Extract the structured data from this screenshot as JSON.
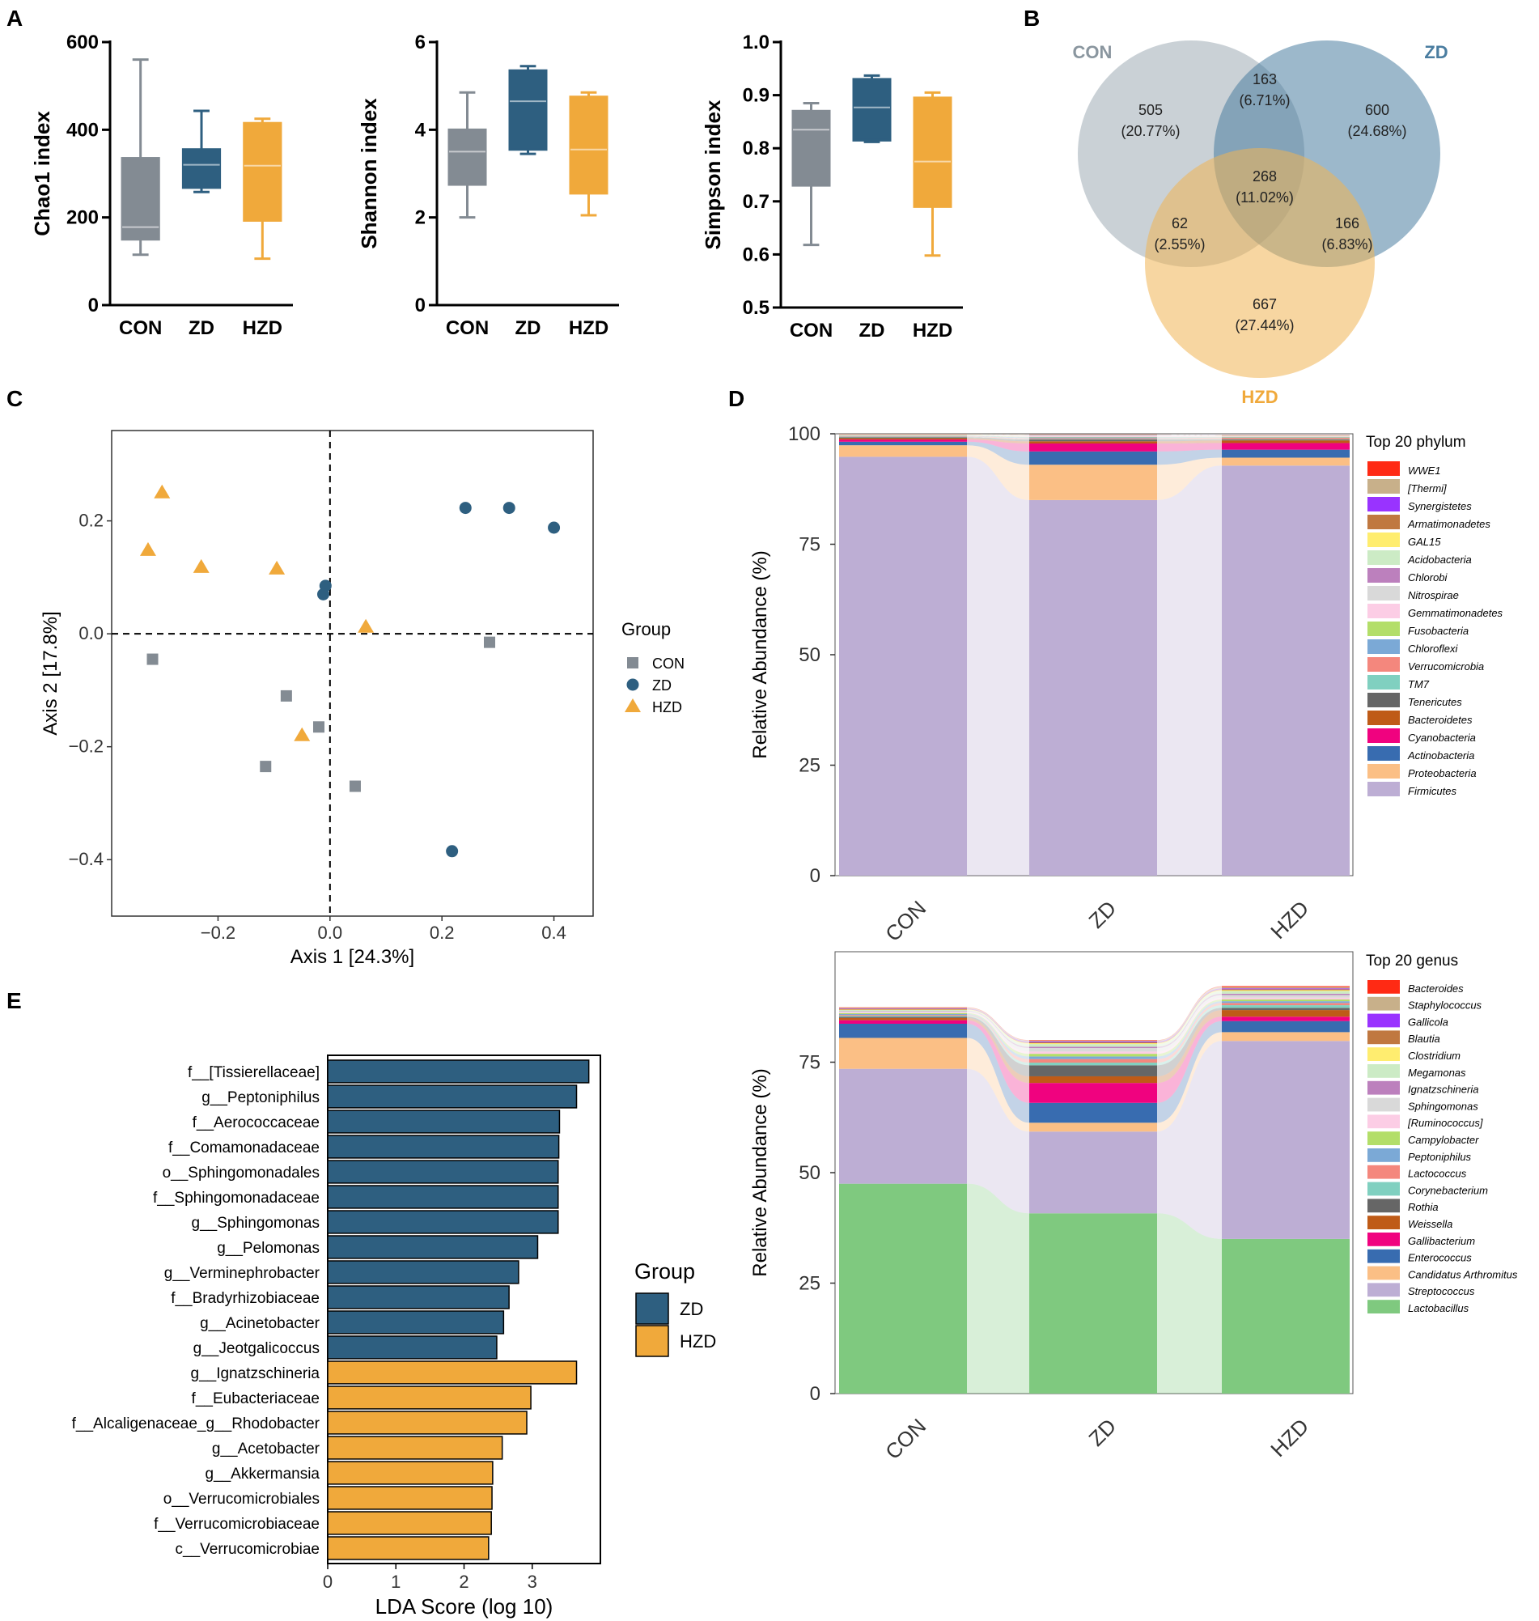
{
  "panel_labels": [
    "A",
    "B",
    "C",
    "D",
    "E"
  ],
  "colors": {
    "CON": "#838b93",
    "ZD": "#2e5f80",
    "HZD": "#f0a93b",
    "CON_venn": "#8a9aa5",
    "ZD_venn": "#4a7da0",
    "HZD_venn": "#f0b554"
  },
  "chart_data": [
    {
      "id": "A1",
      "type": "box",
      "ylabel": "Chao1 index",
      "categories": [
        "CON",
        "ZD",
        "HZD"
      ],
      "ylim": [
        0,
        600
      ],
      "yticks": [
        0,
        200,
        400,
        600
      ],
      "boxes": [
        {
          "group": "CON",
          "min": 115,
          "q1": 150,
          "median": 178,
          "q3": 335,
          "max": 560
        },
        {
          "group": "ZD",
          "min": 258,
          "q1": 268,
          "median": 320,
          "q3": 355,
          "max": 443
        },
        {
          "group": "HZD",
          "min": 106,
          "q1": 193,
          "median": 318,
          "q3": 415,
          "max": 425
        }
      ]
    },
    {
      "id": "A2",
      "type": "box",
      "ylabel": "Shannon index",
      "categories": [
        "CON",
        "ZD",
        "HZD"
      ],
      "ylim": [
        0,
        6
      ],
      "yticks": [
        0,
        2,
        4,
        6
      ],
      "boxes": [
        {
          "group": "CON",
          "min": 2.0,
          "q1": 2.75,
          "median": 3.5,
          "q3": 4.0,
          "max": 4.85
        },
        {
          "group": "ZD",
          "min": 3.45,
          "q1": 3.55,
          "median": 4.65,
          "q3": 5.35,
          "max": 5.45
        },
        {
          "group": "HZD",
          "min": 2.05,
          "q1": 2.55,
          "median": 3.55,
          "q3": 4.75,
          "max": 4.85
        }
      ]
    },
    {
      "id": "A3",
      "type": "box",
      "ylabel": "Simpson index",
      "categories": [
        "CON",
        "ZD",
        "HZD"
      ],
      "ylim": [
        0.5,
        1.0
      ],
      "yticks": [
        0.5,
        0.6,
        0.7,
        0.8,
        0.9,
        1.0
      ],
      "boxes": [
        {
          "group": "CON",
          "min": 0.618,
          "q1": 0.73,
          "median": 0.835,
          "q3": 0.87,
          "max": 0.885
        },
        {
          "group": "ZD",
          "min": 0.812,
          "q1": 0.815,
          "median": 0.877,
          "q3": 0.93,
          "max": 0.937
        },
        {
          "group": "HZD",
          "min": 0.598,
          "q1": 0.69,
          "median": 0.775,
          "q3": 0.895,
          "max": 0.905
        }
      ]
    },
    {
      "id": "B",
      "type": "venn",
      "sets": [
        "CON",
        "ZD",
        "HZD"
      ],
      "regions": [
        {
          "region": "CON only",
          "count": "505",
          "pct": "(20.77%)"
        },
        {
          "region": "CON&ZD",
          "count": "163",
          "pct": "(6.71%)"
        },
        {
          "region": "ZD only",
          "count": "600",
          "pct": "(24.68%)"
        },
        {
          "region": "CON&ZD&HZD",
          "count": "268",
          "pct": "(11.02%)"
        },
        {
          "region": "CON&HZD",
          "count": "62",
          "pct": "(2.55%)"
        },
        {
          "region": "ZD&HZD",
          "count": "166",
          "pct": "(6.83%)"
        },
        {
          "region": "HZD only",
          "count": "667",
          "pct": "(27.44%)"
        }
      ]
    },
    {
      "id": "C",
      "type": "scatter",
      "xlabel": "Axis 1 [24.3%]",
      "ylabel": "Axis 2 [17.8%]",
      "xlim": [
        -0.39,
        0.47
      ],
      "ylim": [
        -0.5,
        0.36
      ],
      "xticks": [
        -0.2,
        0.0,
        0.2,
        0.4
      ],
      "xtick_labels": [
        "−0.2",
        "0.0",
        "0.2",
        "0.4"
      ],
      "yticks": [
        -0.4,
        -0.2,
        0.0,
        0.2
      ],
      "ytick_labels": [
        "−0.4",
        "−0.2",
        "0.0",
        "0.2"
      ],
      "legend_title": "Group",
      "series": [
        {
          "name": "CON",
          "marker": "square",
          "points": [
            [
              -0.317,
              -0.045
            ],
            [
              -0.078,
              -0.11
            ],
            [
              -0.02,
              -0.165
            ],
            [
              -0.115,
              -0.235
            ],
            [
              0.045,
              -0.27
            ],
            [
              0.285,
              -0.015
            ]
          ]
        },
        {
          "name": "ZD",
          "marker": "circle",
          "points": [
            [
              0.242,
              0.223
            ],
            [
              0.32,
              0.223
            ],
            [
              0.4,
              0.188
            ],
            [
              -0.008,
              0.085
            ],
            [
              -0.012,
              0.07
            ],
            [
              0.218,
              -0.385
            ]
          ]
        },
        {
          "name": "HZD",
          "marker": "triangle",
          "points": [
            [
              -0.3,
              0.25
            ],
            [
              -0.325,
              0.148
            ],
            [
              -0.23,
              0.118
            ],
            [
              -0.095,
              0.115
            ],
            [
              0.064,
              0.012
            ],
            [
              -0.05,
              -0.18
            ]
          ]
        }
      ]
    },
    {
      "id": "D1",
      "type": "stacked-area-bar",
      "ylabel": "Relative Abundance (%)",
      "categories": [
        "CON",
        "ZD",
        "HZD"
      ],
      "ylim": [
        0,
        100
      ],
      "yticks": [
        0,
        25,
        50,
        75,
        100
      ],
      "legend_title": "Top 20 phylum",
      "series": [
        {
          "name": "Firmicutes",
          "color": "#bdaed4",
          "values": [
            94.8,
            85.0,
            92.8
          ]
        },
        {
          "name": "Proteobacteria",
          "color": "#fbbf85",
          "values": [
            2.6,
            8.0,
            1.8
          ]
        },
        {
          "name": "Actinobacteria",
          "color": "#386cb0",
          "values": [
            0.8,
            3.0,
            1.8
          ]
        },
        {
          "name": "Cyanobacteria",
          "color": "#f0027f",
          "values": [
            0.5,
            1.8,
            1.5
          ]
        },
        {
          "name": "Bacteroidetes",
          "color": "#bf5b17",
          "values": [
            0.3,
            0.5,
            0.6
          ]
        },
        {
          "name": "Tenericutes",
          "color": "#666666",
          "values": [
            0.2,
            0.4,
            0.2
          ]
        },
        {
          "name": "TM7",
          "color": "#80d0c0",
          "values": [
            0.1,
            0.1,
            0.1
          ]
        },
        {
          "name": "Verrucomicrobia",
          "color": "#f4877d",
          "values": [
            0.1,
            0.2,
            0.3
          ]
        },
        {
          "name": "Chloroflexi",
          "color": "#7ba9d6",
          "values": [
            0.1,
            0.2,
            0.1
          ]
        },
        {
          "name": "Fusobacteria",
          "color": "#b3de69",
          "values": [
            0.1,
            0.1,
            0.1
          ]
        },
        {
          "name": "Gemmatimonadetes",
          "color": "#fccde5",
          "values": [
            0.1,
            0.2,
            0.1
          ]
        },
        {
          "name": "Nitrospirae",
          "color": "#d9d9d9",
          "values": [
            0.05,
            0.1,
            0.05
          ]
        },
        {
          "name": "Chlorobi",
          "color": "#bc80bd",
          "values": [
            0.05,
            0.05,
            0.05
          ]
        },
        {
          "name": "Acidobacteria",
          "color": "#ccebc5",
          "values": [
            0.05,
            0.05,
            0.05
          ]
        },
        {
          "name": "GAL15",
          "color": "#ffed6f",
          "values": [
            0.05,
            0.05,
            0.05
          ]
        },
        {
          "name": "Armatimonadetes",
          "color": "#c07840",
          "values": [
            0.02,
            0.03,
            0.03
          ]
        },
        {
          "name": "Synergistetes",
          "color": "#9933ff",
          "values": [
            0.02,
            0.03,
            0.03
          ]
        },
        {
          "name": "[Thermi]",
          "color": "#c8b08a",
          "values": [
            0.02,
            0.03,
            0.03
          ]
        },
        {
          "name": "WWE1",
          "color": "#ff2a14",
          "values": [
            0.02,
            0.03,
            0.03
          ]
        }
      ]
    },
    {
      "id": "D2",
      "type": "stacked-area-bar",
      "ylabel": "Relative Abundance (%)",
      "categories": [
        "CON",
        "ZD",
        "HZD"
      ],
      "ylim": [
        0,
        100
      ],
      "yticks": [
        0,
        25,
        50,
        75
      ],
      "legend_title": "Top 20 genus",
      "series": [
        {
          "name": "Lactobacillus",
          "color": "#7fc97f",
          "values": [
            47.5,
            40.8,
            35.0
          ]
        },
        {
          "name": "Streptococcus",
          "color": "#bdaed4",
          "values": [
            26.0,
            18.5,
            44.8
          ]
        },
        {
          "name": "Candidatus Arthromitus",
          "color": "#fbbf85",
          "values": [
            7.0,
            2.0,
            2.0
          ]
        },
        {
          "name": "Enterococcus",
          "color": "#386cb0",
          "values": [
            3.2,
            4.5,
            2.5
          ]
        },
        {
          "name": "Gallibacterium",
          "color": "#f0027f",
          "values": [
            0.8,
            4.5,
            1.0
          ]
        },
        {
          "name": "Weissella",
          "color": "#bf5b17",
          "values": [
            0.5,
            1.5,
            1.5
          ]
        },
        {
          "name": "Rothia",
          "color": "#666666",
          "values": [
            0.3,
            2.5,
            0.5
          ]
        },
        {
          "name": "Corynebacterium",
          "color": "#80d0c0",
          "values": [
            0.2,
            0.6,
            0.6
          ]
        },
        {
          "name": "Lactococcus",
          "color": "#f4877d",
          "values": [
            0.2,
            0.8,
            0.5
          ]
        },
        {
          "name": "Peptoniphilus",
          "color": "#7ba9d6",
          "values": [
            0.2,
            0.6,
            0.4
          ]
        },
        {
          "name": "Campylobacter",
          "color": "#b3de69",
          "values": [
            0.2,
            0.6,
            0.4
          ]
        },
        {
          "name": "[Ruminococcus]",
          "color": "#fccde5",
          "values": [
            0.2,
            0.5,
            0.4
          ]
        },
        {
          "name": "Sphingomonas",
          "color": "#d9d9d9",
          "values": [
            0.2,
            0.8,
            0.6
          ]
        },
        {
          "name": "Ignatzschineria",
          "color": "#bc80bd",
          "values": [
            0.1,
            0.3,
            0.3
          ]
        },
        {
          "name": "Megamonas",
          "color": "#ccebc5",
          "values": [
            0.2,
            0.6,
            0.6
          ]
        },
        {
          "name": "Clostridium",
          "color": "#ffed6f",
          "values": [
            0.1,
            0.2,
            0.2
          ]
        },
        {
          "name": "Blautia",
          "color": "#c07840",
          "values": [
            0.1,
            0.2,
            0.2
          ]
        },
        {
          "name": "Gallicola",
          "color": "#9933ff",
          "values": [
            0.1,
            0.2,
            0.2
          ]
        },
        {
          "name": "Staphylococcus",
          "color": "#c8b08a",
          "values": [
            0.2,
            0.2,
            0.3
          ]
        },
        {
          "name": "Bacteroides",
          "color": "#ff2a14",
          "values": [
            0.1,
            0.1,
            0.2
          ]
        }
      ]
    },
    {
      "id": "E",
      "type": "bar",
      "orientation": "horizontal",
      "xlabel": "LDA Score (log 10)",
      "xlim": [
        0,
        4.0
      ],
      "xticks": [
        0,
        1,
        2,
        3
      ],
      "legend_title": "Group",
      "legend": [
        "ZD",
        "HZD"
      ],
      "bars": [
        {
          "label": "f__[Tissierellaceae]",
          "group": "ZD",
          "value": 3.83
        },
        {
          "label": "g__Peptoniphilus",
          "group": "ZD",
          "value": 3.65
        },
        {
          "label": "f__Aerococcaceae",
          "group": "ZD",
          "value": 3.4
        },
        {
          "label": "f__Comamonadaceae",
          "group": "ZD",
          "value": 3.39
        },
        {
          "label": "o__Sphingomonadales",
          "group": "ZD",
          "value": 3.38
        },
        {
          "label": "f__Sphingomonadaceae",
          "group": "ZD",
          "value": 3.38
        },
        {
          "label": "g__Sphingomonas",
          "group": "ZD",
          "value": 3.38
        },
        {
          "label": "g__Pelomonas",
          "group": "ZD",
          "value": 3.08
        },
        {
          "label": "g__Verminephrobacter",
          "group": "ZD",
          "value": 2.8
        },
        {
          "label": "f__Bradyrhizobiaceae",
          "group": "ZD",
          "value": 2.66
        },
        {
          "label": "g__Acinetobacter",
          "group": "ZD",
          "value": 2.58
        },
        {
          "label": "g__Jeotgalicoccus",
          "group": "ZD",
          "value": 2.48
        },
        {
          "label": "g__Ignatzschineria",
          "group": "HZD",
          "value": 3.65
        },
        {
          "label": "f__Eubacteriaceae",
          "group": "HZD",
          "value": 2.98
        },
        {
          "label": "f__Alcaligenaceae_g__Rhodobacter",
          "group": "HZD",
          "value": 2.92
        },
        {
          "label": "g__Acetobacter",
          "group": "HZD",
          "value": 2.56
        },
        {
          "label": "g__Akkermansia",
          "group": "HZD",
          "value": 2.42
        },
        {
          "label": "o__Verrucomicrobiales",
          "group": "HZD",
          "value": 2.41
        },
        {
          "label": "f__Verrucomicrobiaceae",
          "group": "HZD",
          "value": 2.4
        },
        {
          "label": "c__Verrucomicrobiae",
          "group": "HZD",
          "value": 2.36
        }
      ]
    }
  ]
}
